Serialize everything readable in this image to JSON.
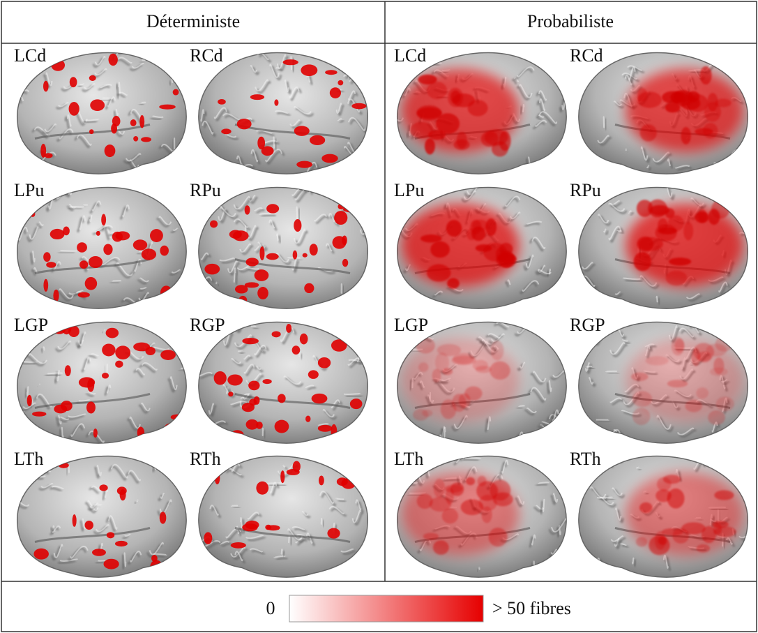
{
  "header": {
    "columns": [
      "Déterministe",
      "Probabiliste"
    ]
  },
  "panels": [
    {
      "rows": [
        [
          "LCd",
          "RCd"
        ],
        [
          "LPu",
          "RPu"
        ],
        [
          "LGP",
          "RGP"
        ],
        [
          "LTh",
          "RTh"
        ]
      ]
    },
    {
      "rows": [
        [
          "LCd",
          "RCd"
        ],
        [
          "LPu",
          "RPu"
        ],
        [
          "LGP",
          "RGP"
        ],
        [
          "LTh",
          "RTh"
        ]
      ]
    }
  ],
  "colorbar": {
    "min_label": "0",
    "max_label": "> 50 fibres"
  }
}
